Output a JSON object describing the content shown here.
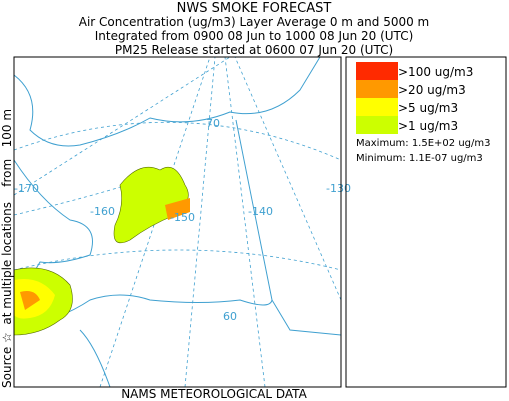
{
  "header": {
    "title": "NWS SMOKE FORECAST",
    "line1": "Air Concentration (ug/m3) Layer Average    0 m and  5000 m",
    "line2": "Integrated from 0900 08 Jun to 1000 08 Jun 20 (UTC)",
    "line3": "PM25 Release started at 0600 07 Jun 20 (UTC)"
  },
  "side_label": "Source ☆  at multiple locations    from   100 m",
  "map": {
    "grid_labels": [
      "70",
      "-170",
      "-160",
      "-150",
      "-140",
      "-130",
      "60"
    ]
  },
  "legend": {
    "items": [
      {
        "label": ">100 ug/m3",
        "color": "#ff2a00"
      },
      {
        "label": ">20 ug/m3",
        "color": "#ff9900"
      },
      {
        "label": ">5 ug/m3",
        "color": "#ffff00"
      },
      {
        "label": ">1 ug/m3",
        "color": "#ccff00"
      }
    ],
    "maximum": "Maximum: 1.5E+02 ug/m3",
    "minimum": "Minimum: 1.1E-07 ug/m3"
  },
  "footer": "NAMS METEOROLOGICAL DATA"
}
